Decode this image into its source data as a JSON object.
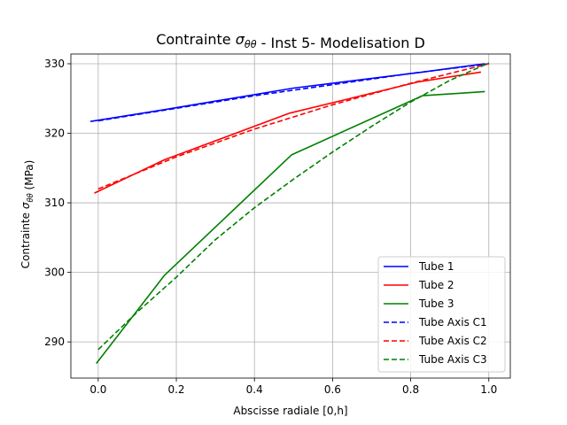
{
  "chart_data": {
    "type": "line",
    "title": "Contrainte σθθ - Inst 5- Modelisation D",
    "xlabel": "Abscisse radiale [0,h]",
    "ylabel": "Contrainte σθθ (MPa)",
    "xlim": [
      -0.07,
      1.055
    ],
    "ylim": [
      284.8,
      331.4
    ],
    "xticks": [
      "0.0",
      "0.2",
      "0.4",
      "0.6",
      "0.8",
      "1.0"
    ],
    "yticks": [
      "290",
      "300",
      "310",
      "320",
      "330"
    ],
    "grid": true,
    "legend_position": "lower-right",
    "series": [
      {
        "name": "Tube 1",
        "color": "#0000ff",
        "dash": "solid",
        "x": [
          -0.02,
          0.17,
          0.5,
          0.83,
          0.99
        ],
        "y": [
          321.7,
          323.4,
          326.5,
          328.8,
          330.0
        ]
      },
      {
        "name": "Tube 2",
        "color": "#ff0000",
        "dash": "solid",
        "x": [
          -0.01,
          0.17,
          0.49,
          0.82,
          0.98
        ],
        "y": [
          311.4,
          316.2,
          322.9,
          327.4,
          328.8
        ]
      },
      {
        "name": "Tube 3",
        "color": "#008000",
        "dash": "solid",
        "x": [
          -0.005,
          0.17,
          0.495,
          0.83,
          0.99
        ],
        "y": [
          286.9,
          299.6,
          316.9,
          325.4,
          326.0
        ]
      },
      {
        "name": "Tube Axis C1",
        "color": "#0000ff",
        "dash": "dashed",
        "x": [
          0.0,
          0.2,
          0.4,
          0.6,
          0.8,
          1.0
        ],
        "y": [
          321.8,
          323.6,
          325.4,
          327.0,
          328.6,
          330.0
        ]
      },
      {
        "name": "Tube Axis C2",
        "color": "#ff0000",
        "dash": "dashed",
        "x": [
          0.0,
          0.2,
          0.4,
          0.6,
          0.8,
          1.0
        ],
        "y": [
          312.0,
          316.6,
          320.6,
          324.1,
          327.2,
          330.0
        ]
      },
      {
        "name": "Tube Axis C3",
        "color": "#008000",
        "dash": "dashed",
        "x": [
          0.0,
          0.1,
          0.2,
          0.3,
          0.4,
          0.5,
          0.6,
          0.7,
          0.8,
          0.9,
          1.0
        ],
        "y": [
          288.9,
          294.3,
          299.3,
          304.7,
          309.3,
          313.4,
          317.3,
          321.0,
          324.5,
          327.6,
          330.1
        ]
      }
    ]
  }
}
